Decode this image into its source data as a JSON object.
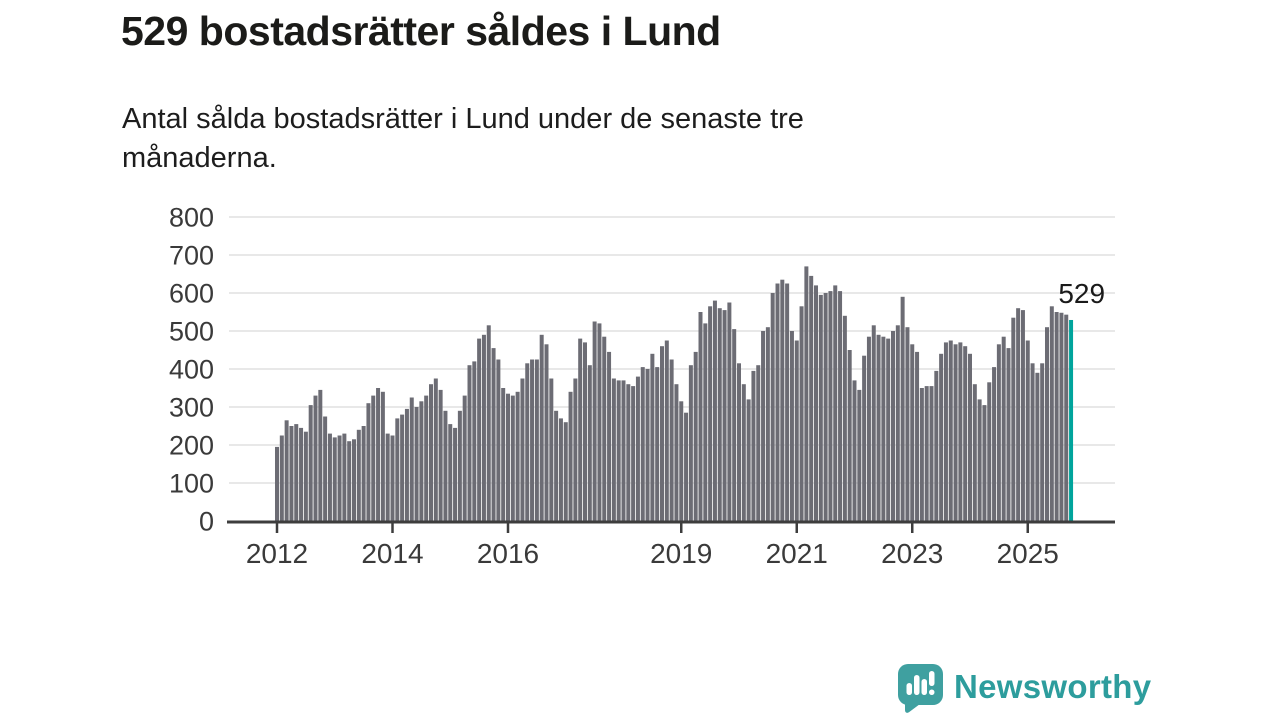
{
  "header": {
    "title": "529 bostadsrätter såldes i Lund",
    "subtitle_line1": "Antal sålda bostadsrätter i Lund under de senaste tre",
    "subtitle_line2": "månaderna."
  },
  "chart_data": {
    "type": "bar",
    "title": "529 bostadsrätter såldes i Lund",
    "subtitle": "Antal sålda bostadsrätter i Lund under de senaste tre månaderna.",
    "x_start": "2012-01",
    "x_interval": "month",
    "x_end": "2025-10",
    "values": [
      195,
      225,
      265,
      250,
      255,
      245,
      235,
      305,
      330,
      345,
      275,
      230,
      220,
      225,
      230,
      210,
      215,
      240,
      250,
      310,
      330,
      350,
      340,
      230,
      225,
      270,
      280,
      295,
      325,
      300,
      315,
      330,
      360,
      375,
      345,
      290,
      255,
      245,
      290,
      330,
      410,
      420,
      480,
      490,
      515,
      455,
      425,
      350,
      335,
      330,
      340,
      375,
      415,
      425,
      425,
      490,
      465,
      375,
      290,
      270,
      260,
      340,
      375,
      480,
      470,
      410,
      525,
      520,
      485,
      445,
      375,
      370,
      370,
      360,
      355,
      380,
      405,
      400,
      440,
      405,
      460,
      475,
      425,
      360,
      315,
      285,
      410,
      445,
      550,
      520,
      565,
      580,
      560,
      555,
      575,
      505,
      415,
      360,
      320,
      395,
      410,
      500,
      510,
      600,
      625,
      635,
      625,
      500,
      475,
      565,
      670,
      645,
      620,
      595,
      600,
      605,
      620,
      605,
      540,
      450,
      370,
      345,
      435,
      485,
      515,
      490,
      485,
      480,
      500,
      515,
      590,
      510,
      465,
      445,
      350,
      355,
      355,
      395,
      440,
      470,
      475,
      465,
      470,
      460,
      440,
      360,
      320,
      305,
      365,
      405,
      465,
      485,
      455,
      535,
      560,
      555,
      475,
      415,
      390,
      415,
      510,
      565,
      550,
      548,
      543,
      529
    ],
    "ylim": [
      0,
      800
    ],
    "yticks": [
      0,
      100,
      200,
      300,
      400,
      500,
      600,
      700,
      800
    ],
    "xticks": [
      2012,
      2014,
      2016,
      2019,
      2021,
      2023,
      2025
    ],
    "grid": "horizontal",
    "legend": "none",
    "bar_color": "#6c6c74",
    "gridline_color": "#e1e1e1",
    "axis_color": "#3d3d3d",
    "tick_label_color": "#3a3a3a",
    "highlight": {
      "index": 165,
      "color": "#00a49c",
      "label": "529",
      "label_color": "#1a1a1a"
    }
  },
  "footer": {
    "brand": "Newsworthy",
    "brand_color": "#2d9d9d",
    "icon": "newsworthy-speech-bubble-chart-icon",
    "icon_color": "#3fa0a0"
  }
}
